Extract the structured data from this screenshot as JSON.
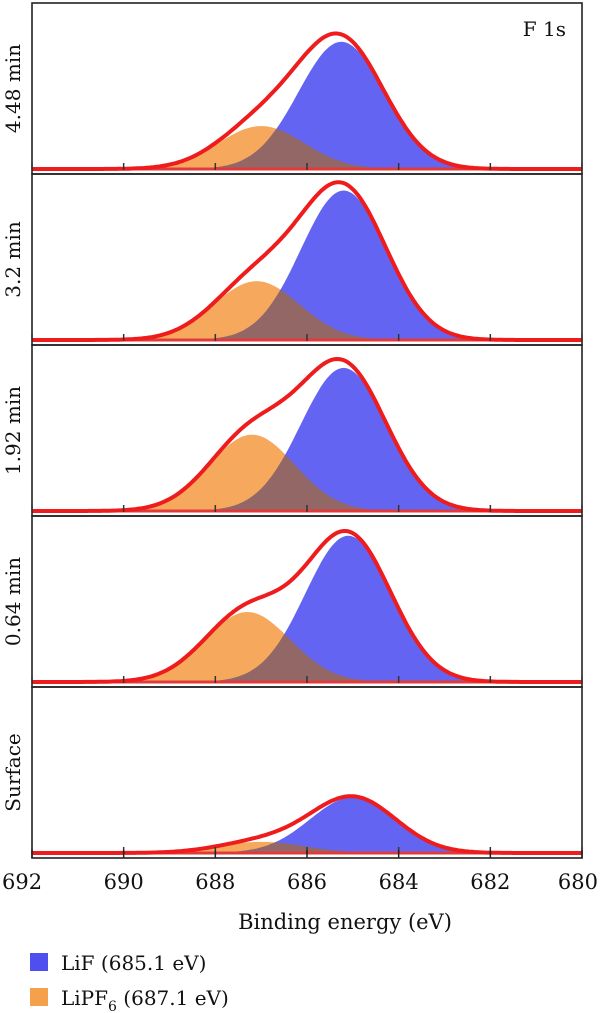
{
  "chart_data": {
    "type": "area",
    "annotation": "F 1s",
    "xlabel": "Binding energy (eV)",
    "xlim": [
      692,
      680
    ],
    "x_ticks": [
      692,
      690,
      688,
      686,
      684,
      682,
      680
    ],
    "x_tick_labels": [
      "692",
      "690",
      "688",
      "686",
      "684",
      "682",
      "680"
    ],
    "legend_position": "bottom-left",
    "legend": [
      {
        "name": "LiF",
        "detail": "(685.1 eV)",
        "sub": "",
        "color": "#4f4ff0"
      },
      {
        "name": "LiPF",
        "detail": "(687.1 eV)",
        "sub": "6",
        "color": "#f5a04a"
      }
    ],
    "panels": [
      {
        "label": "4.48 min",
        "components": [
          {
            "name": "LiF",
            "center": 685.25,
            "height": 0.8,
            "fwhm": 2.2
          },
          {
            "name": "LiPF6",
            "center": 687.0,
            "height": 0.27,
            "fwhm": 2.2
          }
        ]
      },
      {
        "label": "3.2 min",
        "components": [
          {
            "name": "LiF",
            "center": 685.2,
            "height": 0.94,
            "fwhm": 2.2
          },
          {
            "name": "LiPF6",
            "center": 687.1,
            "height": 0.37,
            "fwhm": 2.2
          }
        ]
      },
      {
        "label": "1.92 min",
        "components": [
          {
            "name": "LiF",
            "center": 685.2,
            "height": 0.9,
            "fwhm": 2.2
          },
          {
            "name": "LiPF6",
            "center": 687.2,
            "height": 0.48,
            "fwhm": 2.2
          }
        ]
      },
      {
        "label": "0.64 min",
        "components": [
          {
            "name": "LiF",
            "center": 685.1,
            "height": 0.92,
            "fwhm": 2.2
          },
          {
            "name": "LiPF6",
            "center": 687.3,
            "height": 0.44,
            "fwhm": 2.2
          }
        ]
      },
      {
        "label": "Surface",
        "components": [
          {
            "name": "LiF",
            "center": 685.0,
            "height": 0.35,
            "fwhm": 2.2
          },
          {
            "name": "LiPF6",
            "center": 687.0,
            "height": 0.07,
            "fwhm": 2.2
          }
        ]
      }
    ],
    "colors": {
      "lif": "#4f4ff0",
      "lipf6": "#f5a04a",
      "envelope": "#ee1c1c",
      "baseline": "#e23a3a"
    }
  }
}
